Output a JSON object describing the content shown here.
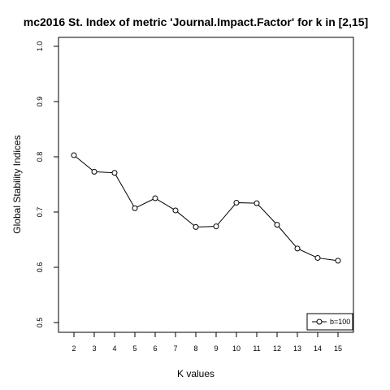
{
  "chart_data": {
    "type": "line",
    "title": "mc2016 St. Index of metric 'Journal.Impact.Factor' for k in [2,15]",
    "xlabel": "K values",
    "ylabel": "Global Stability Indices",
    "x": [
      2,
      3,
      4,
      5,
      6,
      7,
      8,
      9,
      10,
      11,
      12,
      13,
      14,
      15
    ],
    "series": [
      {
        "name": "b=100",
        "values": [
          0.803,
          0.773,
          0.771,
          0.707,
          0.725,
          0.703,
          0.673,
          0.674,
          0.717,
          0.716,
          0.677,
          0.634,
          0.617,
          0.612
        ]
      }
    ],
    "ylim": [
      0.5,
      1.0
    ],
    "yticks": [
      0.5,
      0.6,
      0.7,
      0.8,
      0.9,
      1.0
    ],
    "ytick_labels": [
      "0.5",
      "0.6",
      "0.7",
      "0.8",
      "0.9",
      "1.0"
    ],
    "xtick_labels": [
      "2",
      "3",
      "4",
      "5",
      "6",
      "7",
      "8",
      "9",
      "10",
      "11",
      "12",
      "13",
      "14",
      "15"
    ],
    "grid": false,
    "legend_position": "bottom-right"
  }
}
